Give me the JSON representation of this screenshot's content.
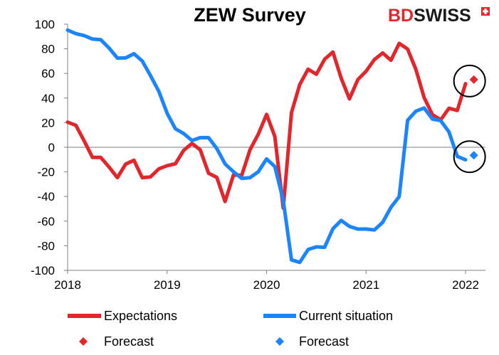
{
  "brand": {
    "part1": "BD",
    "part2": "SWISS"
  },
  "chart_data": {
    "type": "line",
    "title": "ZEW Survey",
    "xlabel": "",
    "ylabel": "",
    "ylim": [
      -100,
      100
    ],
    "yticks": [
      100,
      80,
      60,
      40,
      20,
      0,
      -20,
      -40,
      -60,
      -80,
      -100
    ],
    "xlim": [
      2018.0,
      2022.2
    ],
    "xticks": [
      {
        "value": 2018,
        "label": "2018"
      },
      {
        "value": 2019,
        "label": "2019"
      },
      {
        "value": 2020,
        "label": "2020"
      },
      {
        "value": 2021,
        "label": "2021"
      },
      {
        "value": 2022,
        "label": "2022"
      }
    ],
    "colors": {
      "expectations": "#e2262b",
      "current": "#1a85ff"
    },
    "series": [
      {
        "name": "Expectations",
        "color": "#e2262b",
        "x": [
          2018.0,
          2018.083,
          2018.167,
          2018.25,
          2018.333,
          2018.417,
          2018.5,
          2018.583,
          2018.667,
          2018.75,
          2018.833,
          2018.917,
          2019.0,
          2019.083,
          2019.167,
          2019.25,
          2019.333,
          2019.417,
          2019.5,
          2019.583,
          2019.667,
          2019.75,
          2019.833,
          2019.917,
          2020.0,
          2020.083,
          2020.167,
          2020.25,
          2020.333,
          2020.417,
          2020.5,
          2020.583,
          2020.667,
          2020.75,
          2020.833,
          2020.917,
          2021.0,
          2021.083,
          2021.167,
          2021.25,
          2021.333,
          2021.417,
          2021.5,
          2021.583,
          2021.667,
          2021.75,
          2021.833,
          2021.917,
          2022.0
        ],
        "values": [
          20.4,
          17.8,
          5.1,
          -8.2,
          -8.2,
          -16.1,
          -24.7,
          -13.7,
          -10.6,
          -24.7,
          -24.1,
          -17.5,
          -15.0,
          -13.4,
          -2.5,
          3.1,
          -2.1,
          -21.1,
          -24.5,
          -44.1,
          -22.5,
          -22.8,
          -2.1,
          10.7,
          26.7,
          8.7,
          -49.5,
          28.2,
          51.0,
          63.4,
          59.3,
          71.5,
          77.4,
          56.1,
          39.3,
          55.0,
          61.8,
          71.2,
          76.6,
          70.7,
          84.4,
          79.8,
          63.3,
          40.4,
          26.5,
          22.3,
          31.7,
          29.9,
          51.7
        ]
      },
      {
        "name": "Current situation",
        "color": "#1a85ff",
        "x": [
          2018.0,
          2018.083,
          2018.167,
          2018.25,
          2018.333,
          2018.417,
          2018.5,
          2018.583,
          2018.667,
          2018.75,
          2018.833,
          2018.917,
          2019.0,
          2019.083,
          2019.167,
          2019.25,
          2019.333,
          2019.417,
          2019.5,
          2019.583,
          2019.667,
          2019.75,
          2019.833,
          2019.917,
          2020.0,
          2020.083,
          2020.167,
          2020.25,
          2020.333,
          2020.417,
          2020.5,
          2020.583,
          2020.667,
          2020.75,
          2020.833,
          2020.917,
          2021.0,
          2021.083,
          2021.167,
          2021.25,
          2021.333,
          2021.417,
          2021.5,
          2021.583,
          2021.667,
          2021.75,
          2021.833,
          2021.917,
          2022.0
        ],
        "values": [
          95.2,
          92.3,
          90.7,
          87.9,
          87.4,
          80.6,
          72.4,
          72.6,
          76.0,
          70.1,
          58.2,
          45.3,
          27.6,
          15.0,
          11.1,
          5.5,
          7.8,
          7.8,
          -1.1,
          -13.5,
          -19.9,
          -25.3,
          -24.7,
          -19.9,
          -9.5,
          -15.7,
          -43.1,
          -91.5,
          -93.5,
          -83.1,
          -80.9,
          -81.3,
          -66.2,
          -59.5,
          -64.3,
          -66.5,
          -66.4,
          -67.2,
          -61.0,
          -48.8,
          -40.1,
          21.9,
          29.3,
          31.9,
          22.9,
          21.6,
          12.5,
          -7.4,
          -10.2
        ]
      }
    ],
    "forecasts": [
      {
        "name": "Forecast",
        "series": "Expectations",
        "x": 2022.083,
        "value": 55.0,
        "color": "#e2262b"
      },
      {
        "name": "Forecast",
        "series": "Current situation",
        "x": 2022.083,
        "value": -6.5,
        "color": "#1a85ff"
      }
    ],
    "annotations": [
      {
        "type": "circle",
        "target": "Expectations Forecast",
        "x": 2022.083,
        "value": 55.0
      },
      {
        "type": "circle",
        "target": "Current situation Forecast",
        "x": 2022.083,
        "value": -6.5
      }
    ],
    "grid": false,
    "legend_position": "bottom"
  }
}
